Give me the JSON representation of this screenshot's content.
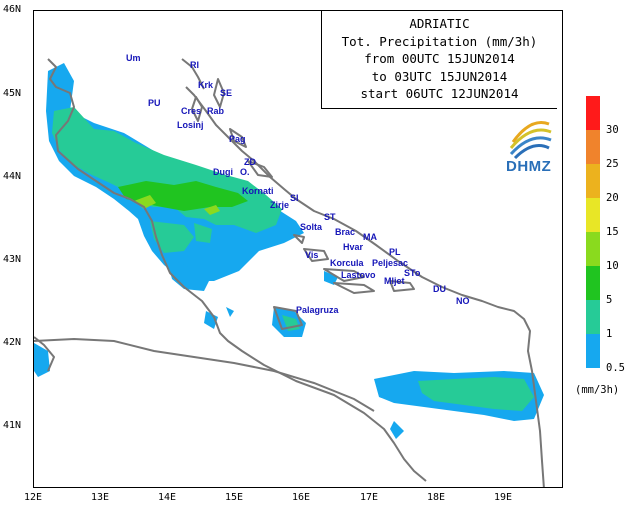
{
  "title_lines": [
    "ADRIATIC",
    "Tot. Precipitation (mm/3h)",
    "from 00UTC 15JUN2014",
    "to 03UTC 15JUN2014",
    "start 06UTC 12JUN2014"
  ],
  "axes": {
    "latitudes": [
      "46N",
      "45N",
      "44N",
      "43N",
      "42N",
      "41N"
    ],
    "longitudes": [
      "12E",
      "13E",
      "14E",
      "15E",
      "16E",
      "17E",
      "18E",
      "19E"
    ]
  },
  "places": [
    "Um",
    "RI",
    "Krk",
    "SE",
    "PU",
    "Cres",
    "Rab",
    "Losinj",
    "Pag",
    "ZD",
    "Dugi",
    "O.",
    "Kornati",
    "SI",
    "Zirje",
    "ST",
    "Solta",
    "Brac",
    "MA",
    "Hvar",
    "PL",
    "Vis",
    "Korcula",
    "Peljesac",
    "Lastovo",
    "STo",
    "Mljet",
    "DU",
    "NO",
    "Palagruza"
  ],
  "logo": {
    "text": "DHMZ",
    "name": "dhmz-logo"
  },
  "legend": {
    "labels": [
      "30",
      "25",
      "20",
      "15",
      "10",
      "5",
      "1",
      "0.5"
    ],
    "colors": [
      "#ff1a1a",
      "#f0832c",
      "#ecb21e",
      "#e8e626",
      "#8ada1e",
      "#20c420",
      "#26cb97",
      "#16a8ef"
    ],
    "unit": "(mm/3h)"
  },
  "colors": {
    "coast": "#777777",
    "precip_light": "#16a8ef",
    "precip_1": "#26cb97",
    "precip_5": "#20c420",
    "precip_10": "#8ada1e",
    "place_label": "#1515b8"
  }
}
